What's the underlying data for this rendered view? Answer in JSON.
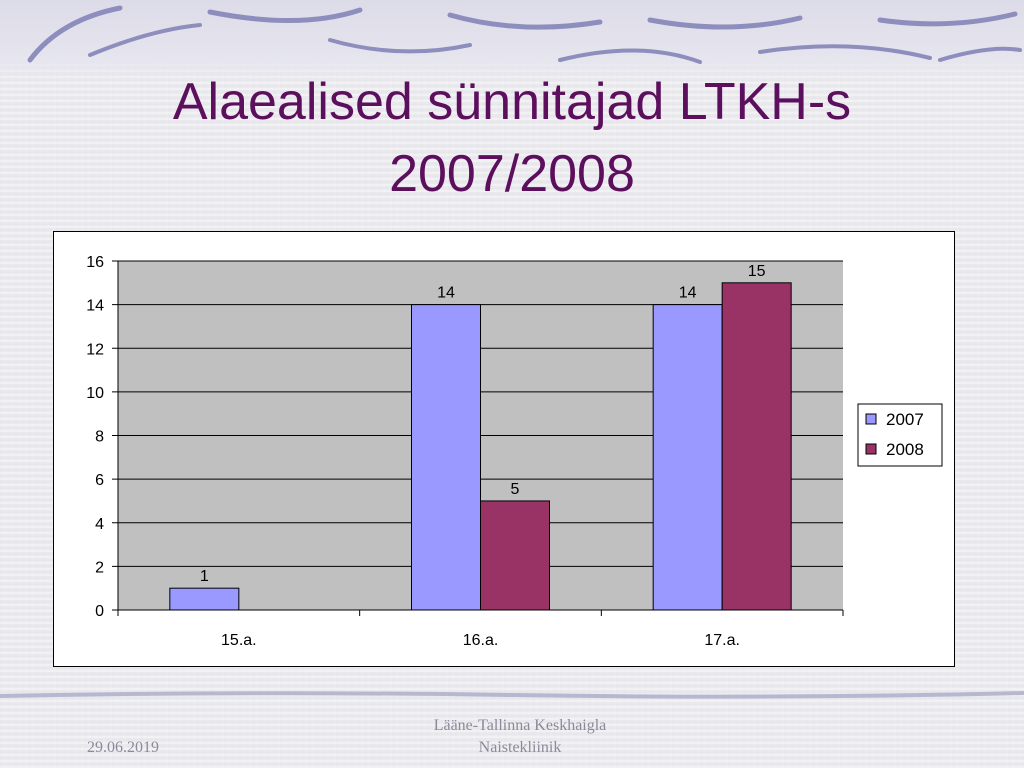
{
  "slide": {
    "title_line1": "Alaealised sünnitajad LTKH-s",
    "title_line2": "2007/2008",
    "footer_date": "29.06.2019",
    "footer_line1": "Lääne-Tallinna Keskhaigla",
    "footer_line2": "Naistekliinik"
  },
  "colors": {
    "title": "#5c0f5c",
    "series_2007": "#9999ff",
    "series_2008": "#993366",
    "plot_background": "#c0c0c0"
  },
  "chart_data": {
    "type": "bar",
    "categories": [
      "15.a.",
      "16.a.",
      "17.a."
    ],
    "series": [
      {
        "name": "2007",
        "values": [
          1,
          14,
          14
        ]
      },
      {
        "name": "2008",
        "values": [
          null,
          5,
          15
        ]
      }
    ],
    "ylim": [
      0,
      16
    ],
    "yticks": [
      0,
      2,
      4,
      6,
      8,
      10,
      12,
      14,
      16
    ],
    "grid": true,
    "legend": "right",
    "data_labels": true
  }
}
